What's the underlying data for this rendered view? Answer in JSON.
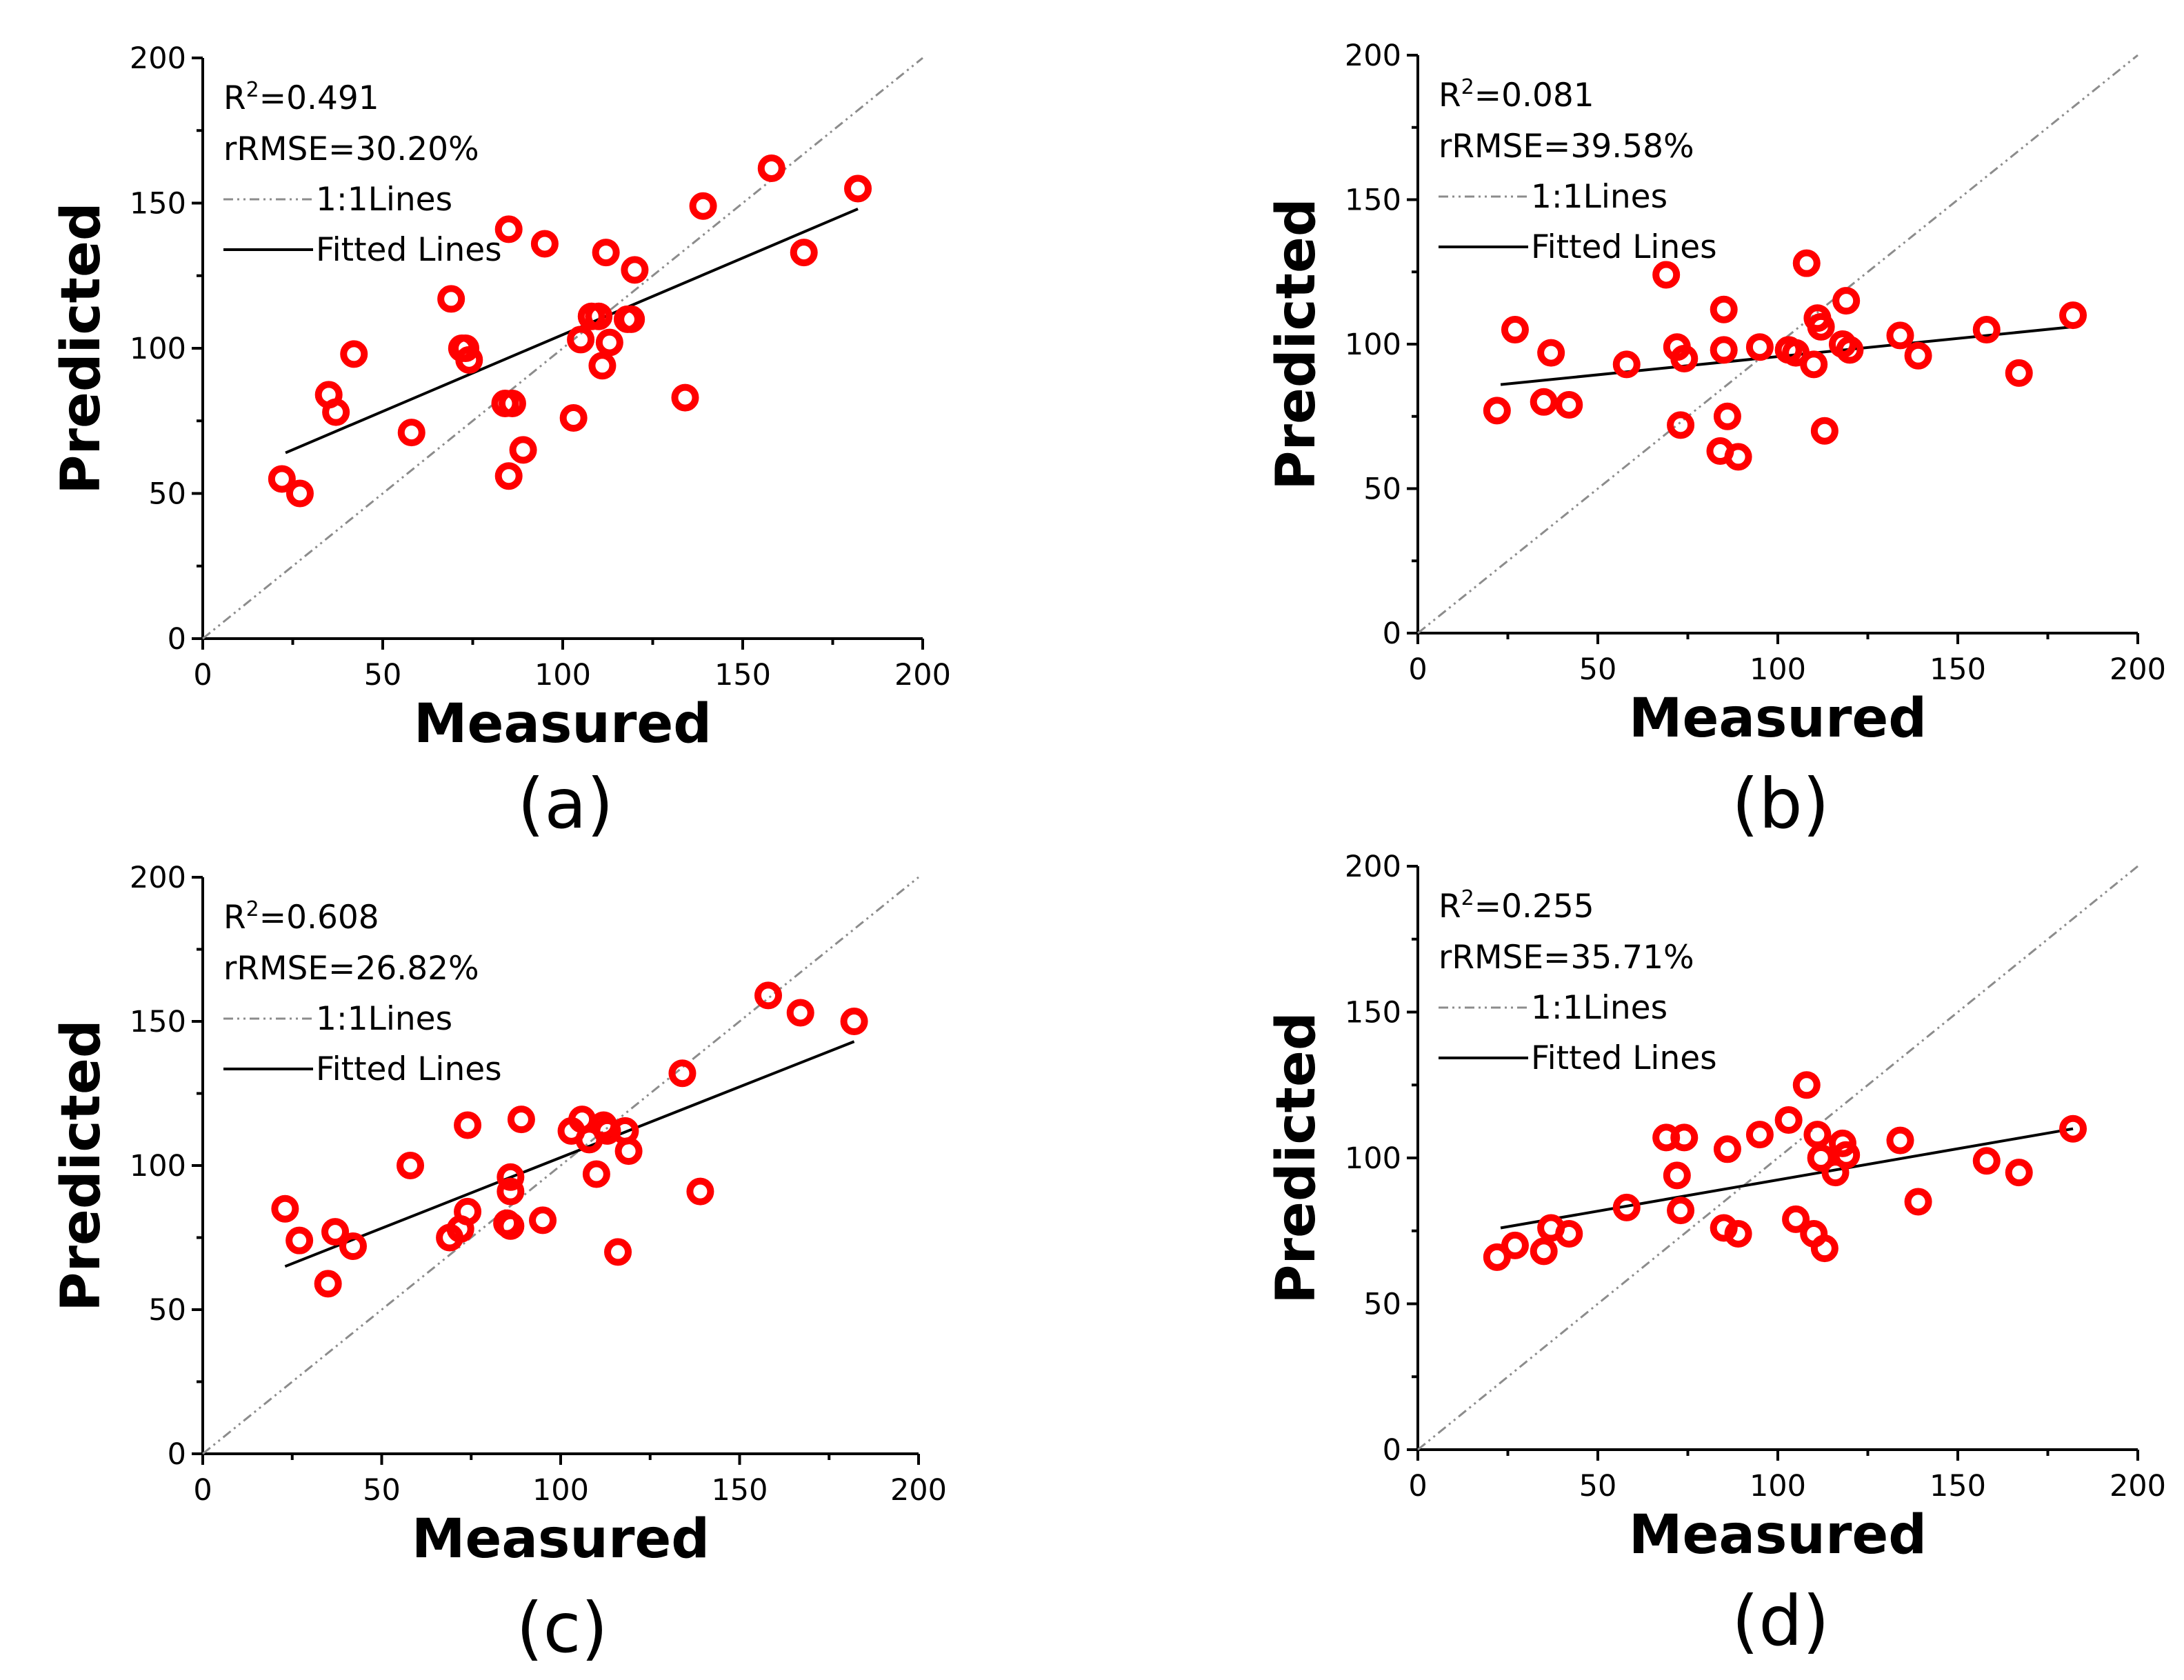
{
  "chart_data": [
    {
      "type": "scatter",
      "panel_label": "(a)",
      "xlabel": "Measured",
      "ylabel": "Predicted",
      "xlim": [
        0,
        200
      ],
      "ylim": [
        0,
        200
      ],
      "xticks": [
        "0",
        "50",
        "100",
        "150",
        "200"
      ],
      "yticks": [
        "0",
        "50",
        "100",
        "150",
        "200"
      ],
      "stats": {
        "r2_prefix": "R",
        "r2_sup": "2",
        "r2_value": "=0.491",
        "rrmse": "rRMSE=30.20%"
      },
      "legend": {
        "one_to_one": "1:1Lines",
        "fitted": "Fitted Lines"
      },
      "fit": {
        "x": [
          23,
          182
        ],
        "y": [
          64,
          148
        ]
      },
      "points": [
        {
          "x": 22,
          "y": 55
        },
        {
          "x": 27,
          "y": 50
        },
        {
          "x": 35,
          "y": 84
        },
        {
          "x": 37,
          "y": 78
        },
        {
          "x": 42,
          "y": 98
        },
        {
          "x": 58,
          "y": 71
        },
        {
          "x": 69,
          "y": 117
        },
        {
          "x": 72,
          "y": 100
        },
        {
          "x": 73,
          "y": 100
        },
        {
          "x": 74,
          "y": 96
        },
        {
          "x": 84,
          "y": 81
        },
        {
          "x": 86,
          "y": 81
        },
        {
          "x": 85,
          "y": 56
        },
        {
          "x": 85,
          "y": 141
        },
        {
          "x": 89,
          "y": 65
        },
        {
          "x": 95,
          "y": 136
        },
        {
          "x": 103,
          "y": 76
        },
        {
          "x": 105,
          "y": 103
        },
        {
          "x": 108,
          "y": 111
        },
        {
          "x": 110,
          "y": 111
        },
        {
          "x": 111,
          "y": 94
        },
        {
          "x": 112,
          "y": 133
        },
        {
          "x": 113,
          "y": 102
        },
        {
          "x": 118,
          "y": 110
        },
        {
          "x": 119,
          "y": 110
        },
        {
          "x": 120,
          "y": 127
        },
        {
          "x": 134,
          "y": 83
        },
        {
          "x": 139,
          "y": 149
        },
        {
          "x": 158,
          "y": 162
        },
        {
          "x": 167,
          "y": 133
        },
        {
          "x": 182,
          "y": 155
        }
      ]
    },
    {
      "type": "scatter",
      "panel_label": "(b)",
      "xlabel": "Measured",
      "ylabel": "Predicted",
      "xlim": [
        0,
        200
      ],
      "ylim": [
        0,
        200
      ],
      "xticks": [
        "0",
        "50",
        "100",
        "150",
        "200"
      ],
      "yticks": [
        "0",
        "50",
        "100",
        "150",
        "200"
      ],
      "stats": {
        "r2_prefix": "R",
        "r2_sup": "2",
        "r2_value": "=0.081",
        "rrmse": "rRMSE=39.58%"
      },
      "legend": {
        "one_to_one": "1:1Lines",
        "fitted": "Fitted Lines"
      },
      "fit": {
        "x": [
          23,
          182
        ],
        "y": [
          86,
          106
        ]
      },
      "points": [
        {
          "x": 22,
          "y": 77
        },
        {
          "x": 27,
          "y": 105
        },
        {
          "x": 35,
          "y": 80
        },
        {
          "x": 37,
          "y": 97
        },
        {
          "x": 42,
          "y": 79
        },
        {
          "x": 58,
          "y": 93
        },
        {
          "x": 69,
          "y": 124
        },
        {
          "x": 72,
          "y": 99
        },
        {
          "x": 73,
          "y": 72
        },
        {
          "x": 74,
          "y": 95
        },
        {
          "x": 84,
          "y": 63
        },
        {
          "x": 85,
          "y": 112
        },
        {
          "x": 85,
          "y": 98
        },
        {
          "x": 86,
          "y": 75
        },
        {
          "x": 89,
          "y": 61
        },
        {
          "x": 95,
          "y": 99
        },
        {
          "x": 103,
          "y": 98
        },
        {
          "x": 105,
          "y": 97
        },
        {
          "x": 108,
          "y": 128
        },
        {
          "x": 110,
          "y": 93
        },
        {
          "x": 111,
          "y": 109
        },
        {
          "x": 112,
          "y": 106
        },
        {
          "x": 113,
          "y": 70
        },
        {
          "x": 118,
          "y": 100
        },
        {
          "x": 119,
          "y": 115
        },
        {
          "x": 120,
          "y": 98
        },
        {
          "x": 134,
          "y": 103
        },
        {
          "x": 139,
          "y": 96
        },
        {
          "x": 158,
          "y": 105
        },
        {
          "x": 167,
          "y": 90
        },
        {
          "x": 182,
          "y": 110
        }
      ]
    },
    {
      "type": "scatter",
      "panel_label": "(c)",
      "xlabel": "Measured",
      "ylabel": "Predicted",
      "xlim": [
        0,
        200
      ],
      "ylim": [
        0,
        200
      ],
      "xticks": [
        "0",
        "50",
        "100",
        "150",
        "200"
      ],
      "yticks": [
        "0",
        "50",
        "100",
        "150",
        "200"
      ],
      "stats": {
        "r2_prefix": "R",
        "r2_sup": "2",
        "r2_value": "=0.608",
        "rrmse": "rRMSE=26.82%"
      },
      "legend": {
        "one_to_one": "1:1Lines",
        "fitted": "Fitted Lines"
      },
      "fit": {
        "x": [
          23,
          182
        ],
        "y": [
          65,
          143
        ]
      },
      "points": [
        {
          "x": 23,
          "y": 85
        },
        {
          "x": 27,
          "y": 74
        },
        {
          "x": 35,
          "y": 59
        },
        {
          "x": 37,
          "y": 77
        },
        {
          "x": 42,
          "y": 72
        },
        {
          "x": 58,
          "y": 100
        },
        {
          "x": 69,
          "y": 75
        },
        {
          "x": 72,
          "y": 78
        },
        {
          "x": 74,
          "y": 84
        },
        {
          "x": 74,
          "y": 114
        },
        {
          "x": 85,
          "y": 80
        },
        {
          "x": 86,
          "y": 79
        },
        {
          "x": 86,
          "y": 91
        },
        {
          "x": 86,
          "y": 96
        },
        {
          "x": 89,
          "y": 116
        },
        {
          "x": 95,
          "y": 81
        },
        {
          "x": 103,
          "y": 112
        },
        {
          "x": 106,
          "y": 116
        },
        {
          "x": 108,
          "y": 109
        },
        {
          "x": 110,
          "y": 97
        },
        {
          "x": 112,
          "y": 114
        },
        {
          "x": 113,
          "y": 112
        },
        {
          "x": 116,
          "y": 70
        },
        {
          "x": 118,
          "y": 112
        },
        {
          "x": 119,
          "y": 105
        },
        {
          "x": 134,
          "y": 132
        },
        {
          "x": 139,
          "y": 91
        },
        {
          "x": 158,
          "y": 159
        },
        {
          "x": 167,
          "y": 153
        },
        {
          "x": 182,
          "y": 150
        }
      ]
    },
    {
      "type": "scatter",
      "panel_label": "(d)",
      "xlabel": "Measured",
      "ylabel": "Predicted",
      "xlim": [
        0,
        200
      ],
      "ylim": [
        0,
        200
      ],
      "xticks": [
        "0",
        "50",
        "100",
        "150",
        "200"
      ],
      "yticks": [
        "0",
        "50",
        "100",
        "150",
        "200"
      ],
      "stats": {
        "r2_prefix": "R",
        "r2_sup": "2",
        "r2_value": "=0.255",
        "rrmse": "rRMSE=35.71%"
      },
      "legend": {
        "one_to_one": "1:1Lines",
        "fitted": "Fitted Lines"
      },
      "fit": {
        "x": [
          23,
          182
        ],
        "y": [
          76,
          110
        ]
      },
      "points": [
        {
          "x": 22,
          "y": 66
        },
        {
          "x": 27,
          "y": 70
        },
        {
          "x": 35,
          "y": 68
        },
        {
          "x": 37,
          "y": 76
        },
        {
          "x": 42,
          "y": 74
        },
        {
          "x": 58,
          "y": 83
        },
        {
          "x": 69,
          "y": 107
        },
        {
          "x": 72,
          "y": 94
        },
        {
          "x": 73,
          "y": 82
        },
        {
          "x": 74,
          "y": 107
        },
        {
          "x": 85,
          "y": 76
        },
        {
          "x": 86,
          "y": 103
        },
        {
          "x": 89,
          "y": 74
        },
        {
          "x": 95,
          "y": 108
        },
        {
          "x": 103,
          "y": 113
        },
        {
          "x": 105,
          "y": 79
        },
        {
          "x": 108,
          "y": 125
        },
        {
          "x": 110,
          "y": 74
        },
        {
          "x": 111,
          "y": 108
        },
        {
          "x": 112,
          "y": 100
        },
        {
          "x": 113,
          "y": 69
        },
        {
          "x": 116,
          "y": 95
        },
        {
          "x": 118,
          "y": 105
        },
        {
          "x": 119,
          "y": 101
        },
        {
          "x": 134,
          "y": 106
        },
        {
          "x": 139,
          "y": 85
        },
        {
          "x": 158,
          "y": 99
        },
        {
          "x": 167,
          "y": 95
        },
        {
          "x": 182,
          "y": 110
        }
      ]
    }
  ]
}
